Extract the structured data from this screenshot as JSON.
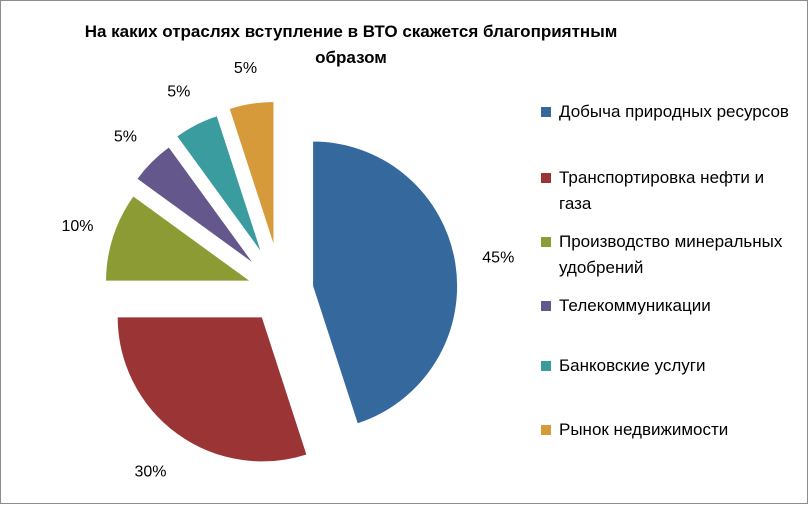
{
  "chart_data": {
    "type": "pie",
    "title": "На каких отраслях вступление в ВТО скажется благоприятным образом",
    "categories": [
      "Добыча природных ресурсов",
      "Транспортировка нефти и газа",
      "Производство минеральных удобрений",
      "Телекоммуникации",
      "Банковские услуги",
      "Рынок недвижимости"
    ],
    "values": [
      45,
      30,
      10,
      5,
      5,
      5
    ],
    "data_labels": [
      "45%",
      "30%",
      "10%",
      "5%",
      "5%",
      "5%"
    ],
    "colors": [
      "#35689c",
      "#9b3434",
      "#8c9b34",
      "#63578c",
      "#3a9c9f",
      "#d69a3a"
    ],
    "legend_position": "right",
    "exploded": true
  }
}
